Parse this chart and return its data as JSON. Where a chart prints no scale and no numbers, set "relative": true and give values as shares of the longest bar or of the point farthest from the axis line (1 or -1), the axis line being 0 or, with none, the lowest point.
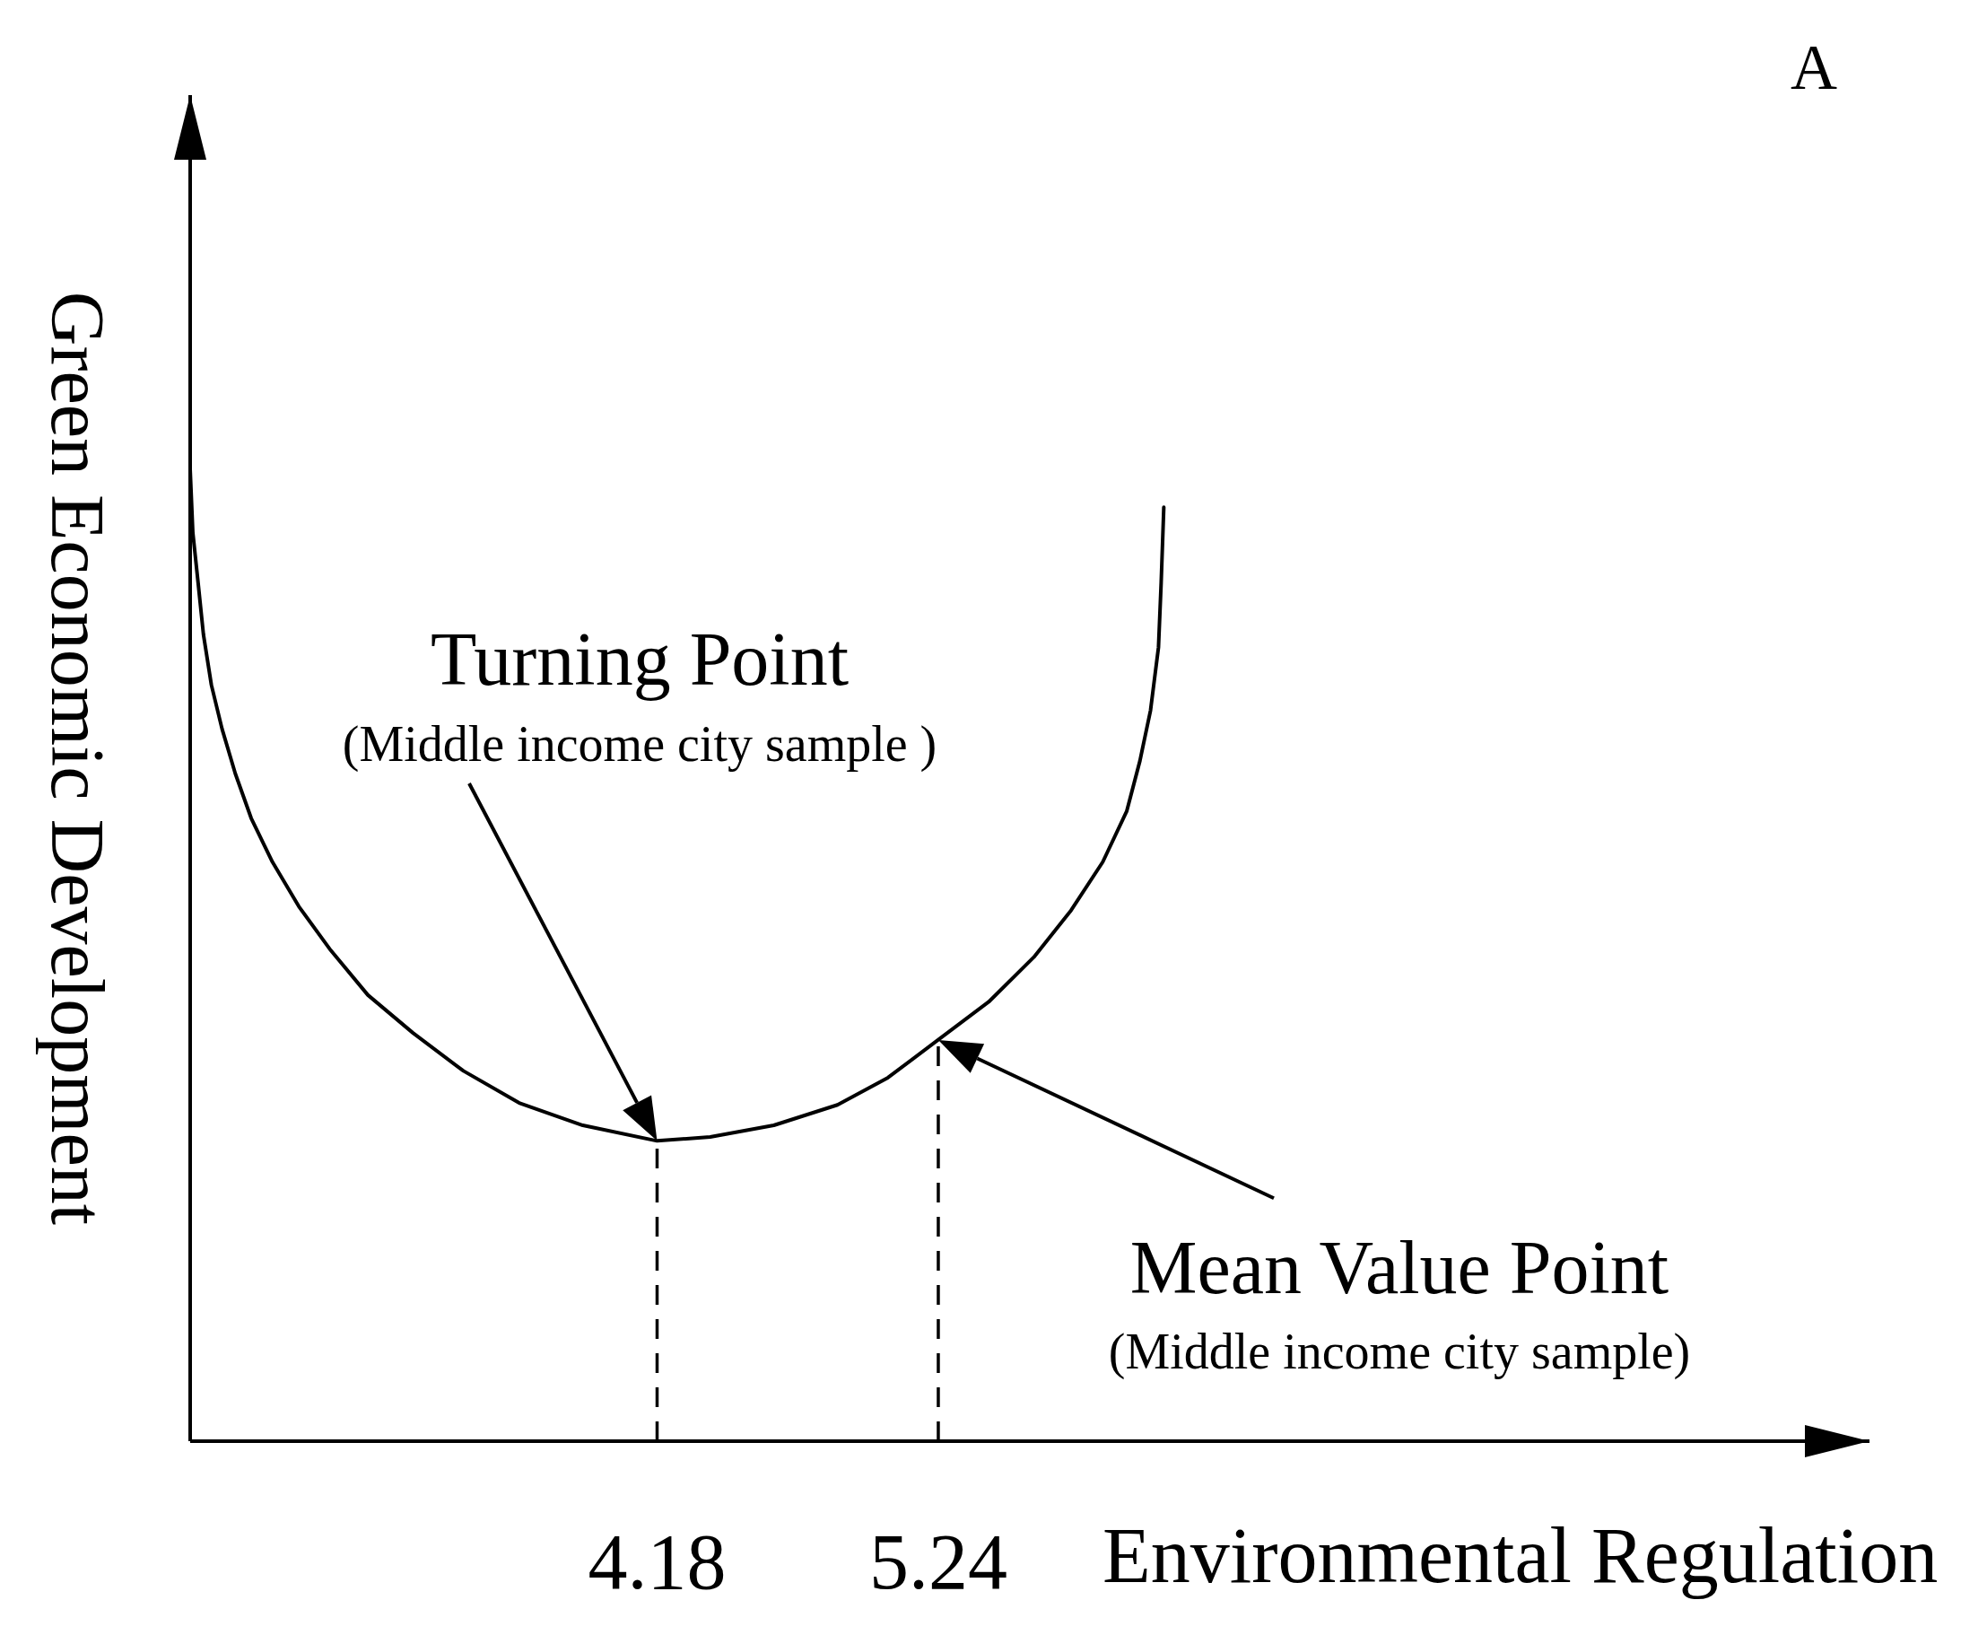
{
  "chart_data": {
    "type": "line",
    "xlabel": "Environmental Regulation",
    "ylabel": "Green Economic Development",
    "relative": true,
    "x": [
      2.42,
      2.43,
      2.45,
      2.47,
      2.5,
      2.54,
      2.59,
      2.65,
      2.73,
      2.83,
      2.95,
      3.09,
      3.26,
      3.45,
      3.66,
      3.9,
      4.18,
      4.38,
      4.62,
      4.86,
      5.05,
      5.24,
      5.43,
      5.6,
      5.74,
      5.86,
      5.95,
      6.0,
      6.04,
      6.07,
      6.08,
      6.09
    ],
    "series": [
      {
        "color": "#000000",
        "values": [
          1.0,
          0.935,
          0.883,
          0.83,
          0.778,
          0.733,
          0.687,
          0.641,
          0.596,
          0.55,
          0.505,
          0.459,
          0.42,
          0.381,
          0.348,
          0.325,
          0.309,
          0.313,
          0.325,
          0.346,
          0.374,
          0.413,
          0.452,
          0.498,
          0.546,
          0.596,
          0.648,
          0.7,
          0.752,
          0.817,
          0.883,
          0.961
        ]
      }
    ],
    "xlim": [
      2.42,
      8.75
    ],
    "xticks": [
      4.18,
      5.24
    ],
    "ref_lines": [
      {
        "axis": "x",
        "value": 4.18,
        "color": "#000000",
        "line_style": "dashed"
      },
      {
        "axis": "x",
        "value": 5.24,
        "color": "#000000",
        "line_style": "dashed"
      }
    ],
    "annotations": [
      "Turning Point",
      "(Middle income city sample )",
      "Mean Value Point",
      "(Middle income city sample)",
      "A"
    ],
    "marker": "none",
    "line_style": "solid",
    "grid": false,
    "legend": false
  }
}
